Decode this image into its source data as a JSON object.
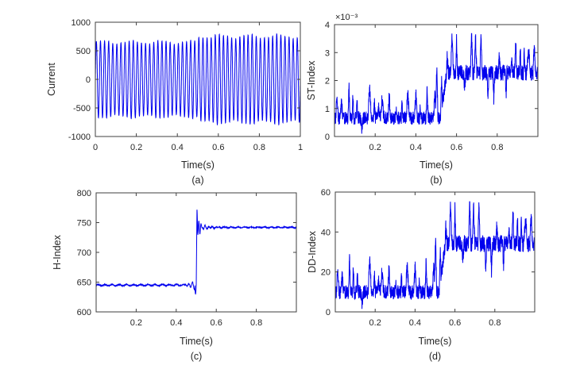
{
  "figure": {
    "background": "#ffffff",
    "text_color": "#262626",
    "axis_color": "#3f3f3f",
    "line_color": "#0000ee"
  },
  "chart_data": [
    {
      "id": "a",
      "type": "line",
      "caption": "(a)",
      "xlabel": "Time(s)",
      "ylabel": "Current",
      "xlim": [
        0,
        1
      ],
      "ylim": [
        -1000,
        1000
      ],
      "xticks": [
        0,
        0.2,
        0.4,
        0.6,
        0.8,
        1
      ],
      "xtick_labels": [
        "0",
        "0.2",
        "0.4",
        "0.6",
        "0.8",
        "1"
      ],
      "yticks": [
        -1000,
        -500,
        0,
        500,
        1000
      ],
      "ytick_labels": [
        "-1000",
        "-500",
        "0",
        "500",
        "1000"
      ],
      "grid": false,
      "legend": null,
      "series": [
        {
          "name": "current-signal",
          "color": "#0000ee",
          "signal": {
            "kind": "am_sine",
            "freq": 50,
            "amp_pre": 650,
            "amp_post": 752,
            "step_t": 0.502,
            "mod_freq": 7,
            "mod_depth": 0.045
          }
        }
      ],
      "summary": "50 Hz sinusoidal current, amplitude ~650 before t=0.5 s, ~750 after"
    },
    {
      "id": "b",
      "type": "line",
      "caption": "(b)",
      "xlabel": "Time(s)",
      "ylabel": "ST-Index",
      "exponent_label": "×10⁻³",
      "unit_scale": 0.001,
      "xlim": [
        0,
        1
      ],
      "ylim": [
        0,
        4
      ],
      "xticks": [
        0.2,
        0.4,
        0.6,
        0.8
      ],
      "xtick_labels": [
        "0.2",
        "0.4",
        "0.6",
        "0.8"
      ],
      "yticks": [
        0,
        1,
        2,
        3,
        4
      ],
      "ytick_labels": [
        "0",
        "1",
        "2",
        "3",
        "4"
      ],
      "grid": false,
      "legend": null,
      "series": [
        {
          "name": "st-index-signal",
          "color": "#0000ee",
          "signal": {
            "kind": "spiky_step",
            "seed": 20,
            "n": 1500,
            "spike_rate": 36,
            "step_window": [
              0.515,
              0.558
            ],
            "pre": {
              "mean": 0.165,
              "noise": 0.06,
              "spike": 0.27
            },
            "post": {
              "mean": 0.57,
              "noise": 0.07,
              "spike": 0.32
            },
            "trans_spike": {
              "t": 0.503,
              "h": 0.5,
              "w": 0.0055
            },
            "value_scale": 4
          }
        }
      ],
      "summary": "ST-Index ~0.7e-3 before fault at t=0.5 s, rises to ~2.4e-3 with spikes to 3.6e-3"
    },
    {
      "id": "c",
      "type": "line",
      "caption": "(c)",
      "xlabel": "Time(s)",
      "ylabel": "H-Index",
      "xlim": [
        0,
        1
      ],
      "ylim": [
        600,
        800
      ],
      "xticks": [
        0.2,
        0.4,
        0.6,
        0.8
      ],
      "xtick_labels": [
        "0.2",
        "0.4",
        "0.6",
        "0.8"
      ],
      "yticks": [
        600,
        650,
        700,
        750,
        800
      ],
      "ytick_labels": [
        "600",
        "650",
        "700",
        "750",
        "800"
      ],
      "grid": false,
      "legend": null,
      "series": [
        {
          "name": "h-index-signal",
          "color": "#0000ee",
          "signal": {
            "kind": "step_response",
            "seed": 11,
            "pre_level": 645,
            "dip_level": 630,
            "peak_level": 773,
            "post_level": 742,
            "step_t": 0.5
          }
        }
      ],
      "summary": "H-Index ~645 before t=0.5 s, dips to 630, transient peak 773, settles at ~742"
    },
    {
      "id": "d",
      "type": "line",
      "caption": "(d)",
      "xlabel": "Time(s)",
      "ylabel": "DD-Index",
      "xlim": [
        0,
        1
      ],
      "ylim": [
        0,
        60
      ],
      "xticks": [
        0.2,
        0.4,
        0.6,
        0.8
      ],
      "xtick_labels": [
        "0.2",
        "0.4",
        "0.6",
        "0.8"
      ],
      "yticks": [
        0,
        20,
        40,
        60
      ],
      "ytick_labels": [
        "0",
        "20",
        "40",
        "60"
      ],
      "grid": false,
      "legend": null,
      "series": [
        {
          "name": "dd-index-signal",
          "color": "#0000ee",
          "signal": {
            "kind": "spiky_step",
            "seed": 20,
            "n": 1500,
            "spike_rate": 36,
            "step_window": [
              0.515,
              0.558
            ],
            "pre": {
              "mean": 0.165,
              "noise": 0.06,
              "spike": 0.27
            },
            "post": {
              "mean": 0.57,
              "noise": 0.07,
              "spike": 0.32
            },
            "trans_spike": {
              "t": 0.503,
              "h": 0.5,
              "w": 0.0055
            },
            "value_scale": 60
          }
        }
      ],
      "summary": "DD-Index ~9 before fault at t=0.5 s, rises to ~35 with spikes above 50"
    }
  ]
}
